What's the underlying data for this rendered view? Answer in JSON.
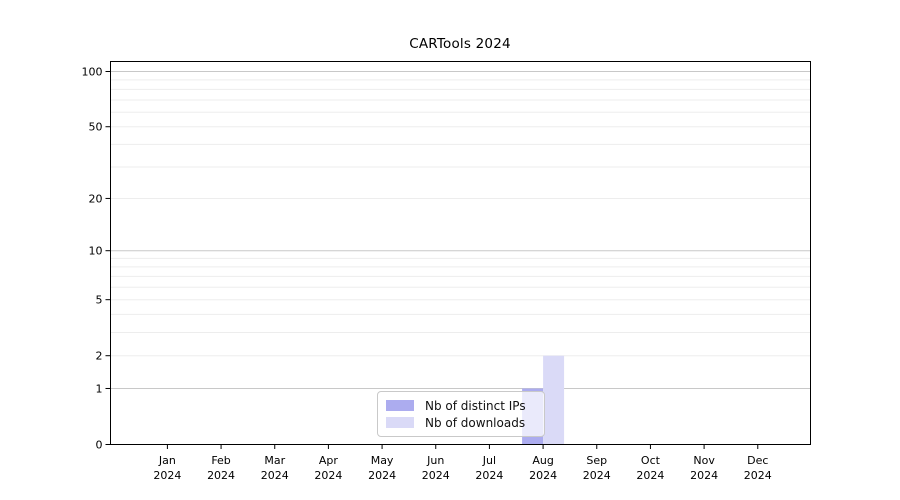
{
  "chart_data": {
    "type": "bar",
    "title": "CARTools 2024",
    "categories": [
      "Jan 2024",
      "Feb 2024",
      "Mar 2024",
      "Apr 2024",
      "May 2024",
      "Jun 2024",
      "Jul 2024",
      "Aug 2024",
      "Sep 2024",
      "Oct 2024",
      "Nov 2024",
      "Dec 2024"
    ],
    "series": [
      {
        "name": "Nb of distinct IPs",
        "color": "#acacef",
        "values": [
          0,
          0,
          0,
          0,
          0,
          0,
          0,
          1,
          0,
          0,
          0,
          0
        ]
      },
      {
        "name": "Nb of downloads",
        "color": "#dadaf7",
        "values": [
          0,
          0,
          0,
          0,
          0,
          0,
          0,
          2,
          0,
          0,
          0,
          0
        ]
      }
    ],
    "y_axis": {
      "scale": "log1p",
      "ticks": [
        0,
        1,
        2,
        5,
        10,
        20,
        50,
        100
      ],
      "max": 100,
      "major_gridlines": [
        1,
        10,
        100
      ],
      "minor_gridlines": [
        2,
        3,
        4,
        5,
        6,
        7,
        8,
        9,
        20,
        30,
        40,
        50,
        60,
        70,
        80,
        90
      ]
    },
    "legend_position": "bottom-center",
    "grid": "on",
    "colors": {
      "axis": "#000000",
      "major_grid": "#c8c8c8",
      "minor_grid": "#ededed",
      "background": "#ffffff"
    }
  }
}
